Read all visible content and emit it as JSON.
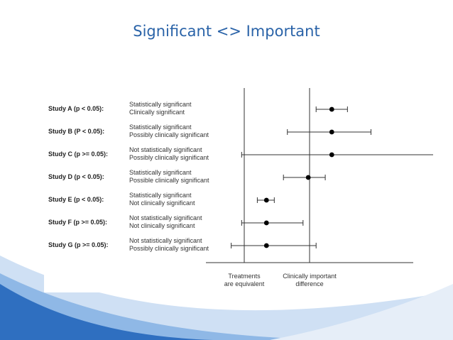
{
  "title": "Significant <> Important",
  "studies": [
    {
      "label": "Study A (p < 0.05):",
      "desc1": "Statistically significant",
      "desc2": "Clinically significant",
      "estimate": 0.67,
      "ci": [
        0.55,
        0.79
      ]
    },
    {
      "label": "Study B (P < 0.05):",
      "desc1": "Statistically significant",
      "desc2": "Possibly clinically significant",
      "estimate": 0.67,
      "ci": [
        0.33,
        0.97
      ]
    },
    {
      "label": "Study C (p >= 0.05):",
      "desc1": "Not statistically significant",
      "desc2": "Possibly clinically significant",
      "estimate": 0.67,
      "ci": [
        -0.02,
        1.45
      ]
    },
    {
      "label": "Study D (p < 0.05):",
      "desc1": "Statistically significant",
      "desc2": "Possible clinically significant",
      "estimate": 0.49,
      "ci": [
        0.3,
        0.62
      ]
    },
    {
      "label": "Study E (p < 0.05):",
      "desc1": "Statistically significant",
      "desc2": "Not clinically significant",
      "estimate": 0.17,
      "ci": [
        0.1,
        0.23
      ]
    },
    {
      "label": "Study F (p >= 0.05):",
      "desc1": "Not statistically significant",
      "desc2": "Not clinically significant",
      "estimate": 0.17,
      "ci": [
        -0.02,
        0.45
      ]
    },
    {
      "label": "Study G (p >= 0.05):",
      "desc1": "Not statistically significant",
      "desc2": "Possibly clinically significant",
      "estimate": 0.17,
      "ci": [
        -0.1,
        0.55
      ]
    }
  ],
  "reference_lines": [
    {
      "caption1": "Treatments",
      "caption2": "are equivalent",
      "value": 0
    },
    {
      "caption1": "Clinically important",
      "caption2": "difference",
      "value": 0.5
    }
  ],
  "colors": {
    "title": "#2a63a8",
    "wave_dark": "#2f6fc0",
    "wave_light": "#8fb8e6"
  }
}
